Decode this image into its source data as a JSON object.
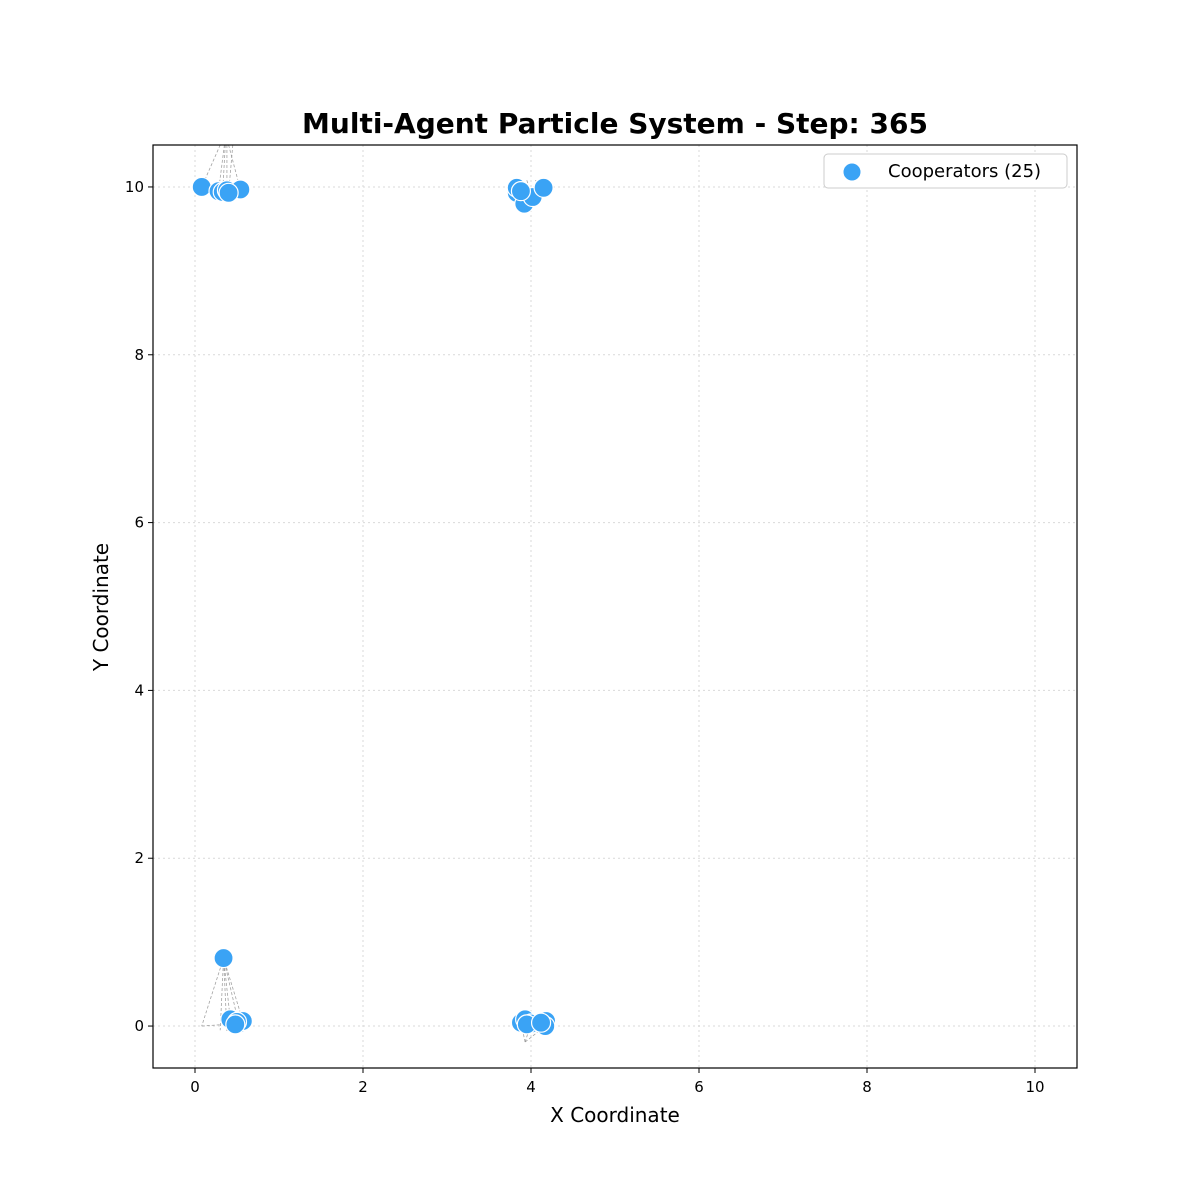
{
  "chart_data": {
    "type": "scatter",
    "title": "Multi-Agent Particle System - Step: 365",
    "xlabel": "X Coordinate",
    "ylabel": "Y Coordinate",
    "xlim": [
      -0.5,
      10.5
    ],
    "ylim": [
      -0.5,
      10.5
    ],
    "xticks": [
      0,
      2,
      4,
      6,
      8,
      10
    ],
    "yticks": [
      0,
      2,
      4,
      6,
      8,
      10
    ],
    "grid": true,
    "legend_position": "top-right",
    "point_color": "#3aa3f5",
    "series": [
      {
        "name": "Cooperators (25)",
        "points": [
          [
            0.08,
            10.0
          ],
          [
            0.28,
            9.95
          ],
          [
            0.33,
            9.94
          ],
          [
            0.38,
            9.96
          ],
          [
            0.54,
            9.97
          ],
          [
            3.83,
            9.93
          ],
          [
            3.83,
            9.99
          ],
          [
            3.92,
            9.8
          ],
          [
            4.02,
            9.88
          ],
          [
            4.15,
            9.99
          ],
          [
            0.34,
            0.81
          ],
          [
            0.42,
            0.08
          ],
          [
            0.52,
            0.03
          ],
          [
            0.57,
            0.06
          ],
          [
            0.5,
            0.05
          ],
          [
            3.88,
            0.04
          ],
          [
            3.93,
            0.08
          ],
          [
            4.0,
            0.03
          ],
          [
            4.18,
            0.06
          ],
          [
            4.17,
            0.0
          ],
          [
            0.4,
            9.93
          ],
          [
            3.88,
            9.95
          ],
          [
            0.48,
            0.02
          ],
          [
            3.95,
            0.02
          ],
          [
            4.12,
            0.04
          ]
        ]
      }
    ],
    "trails": [
      [
        [
          0.3,
          10.5
        ],
        [
          0.08,
          10.0
        ]
      ],
      [
        [
          0.35,
          10.5
        ],
        [
          0.28,
          9.95
        ]
      ],
      [
        [
          0.36,
          10.5
        ],
        [
          0.33,
          9.94
        ]
      ],
      [
        [
          0.38,
          10.5
        ],
        [
          0.38,
          9.96
        ]
      ],
      [
        [
          0.4,
          10.5
        ],
        [
          0.54,
          9.97
        ]
      ],
      [
        [
          0.45,
          10.5
        ],
        [
          0.4,
          9.93
        ]
      ],
      [
        [
          3.95,
          10.08
        ],
        [
          4.02,
          9.88
        ]
      ],
      [
        [
          4.05,
          10.08
        ],
        [
          4.15,
          9.99
        ]
      ],
      [
        [
          3.9,
          10.06
        ],
        [
          3.83,
          9.99
        ]
      ],
      [
        [
          0.34,
          0.81
        ],
        [
          0.08,
          0.0
        ]
      ],
      [
        [
          0.34,
          0.81
        ],
        [
          0.3,
          -0.05
        ]
      ],
      [
        [
          0.34,
          0.81
        ],
        [
          0.42,
          0.08
        ]
      ],
      [
        [
          0.34,
          0.81
        ],
        [
          0.52,
          0.03
        ]
      ],
      [
        [
          0.34,
          0.81
        ],
        [
          0.57,
          0.06
        ]
      ],
      [
        [
          0.34,
          0.81
        ],
        [
          0.38,
          -0.06
        ]
      ],
      [
        [
          0.08,
          0.0
        ],
        [
          0.52,
          0.03
        ]
      ],
      [
        [
          3.93,
          -0.19
        ],
        [
          3.88,
          0.04
        ]
      ],
      [
        [
          3.93,
          -0.19
        ],
        [
          4.0,
          0.03
        ]
      ],
      [
        [
          3.93,
          -0.19
        ],
        [
          4.17,
          0.0
        ]
      ]
    ]
  }
}
